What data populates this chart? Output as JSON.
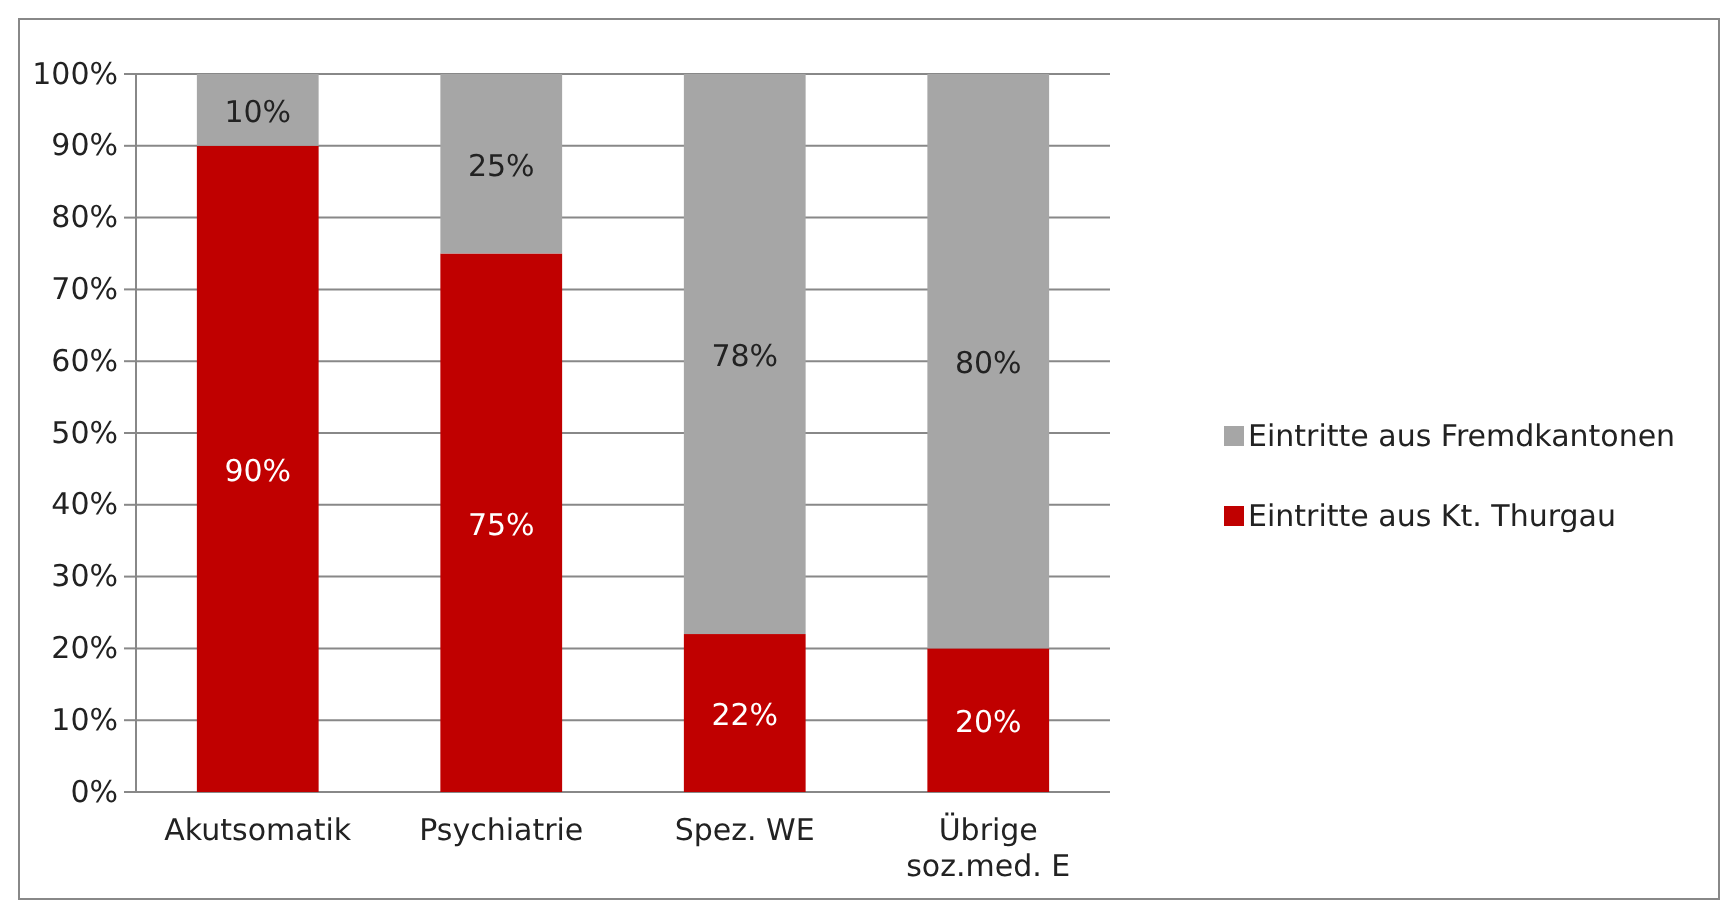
{
  "chart_data": {
    "type": "bar",
    "stacked": true,
    "categories": [
      "Akutsomatik",
      "Psychiatrie",
      "Spez. WE",
      "Übrige soz.med. E"
    ],
    "series": [
      {
        "name": "Eintritte aus Kt. Thurgau",
        "color": "#c00000",
        "values": [
          90,
          75,
          22,
          20
        ],
        "value_labels": [
          "90%",
          "75%",
          "22%",
          "20%"
        ]
      },
      {
        "name": "Eintritte aus Fremdkantonen",
        "color": "#a6a6a6",
        "values": [
          10,
          25,
          78,
          80
        ],
        "value_labels": [
          "10%",
          "25%",
          "78%",
          "80%"
        ]
      }
    ],
    "ylim": [
      0,
      100
    ],
    "yticks": [
      {
        "value": 0,
        "label": "0%"
      },
      {
        "value": 10,
        "label": "10%"
      },
      {
        "value": 20,
        "label": "20%"
      },
      {
        "value": 30,
        "label": "30%"
      },
      {
        "value": 40,
        "label": "40%"
      },
      {
        "value": 50,
        "label": "50%"
      },
      {
        "value": 60,
        "label": "60%"
      },
      {
        "value": 70,
        "label": "70%"
      },
      {
        "value": 80,
        "label": "80%"
      },
      {
        "value": 90,
        "label": "90%"
      },
      {
        "value": 100,
        "label": "100%"
      }
    ],
    "grid": "y",
    "legend": "right"
  }
}
